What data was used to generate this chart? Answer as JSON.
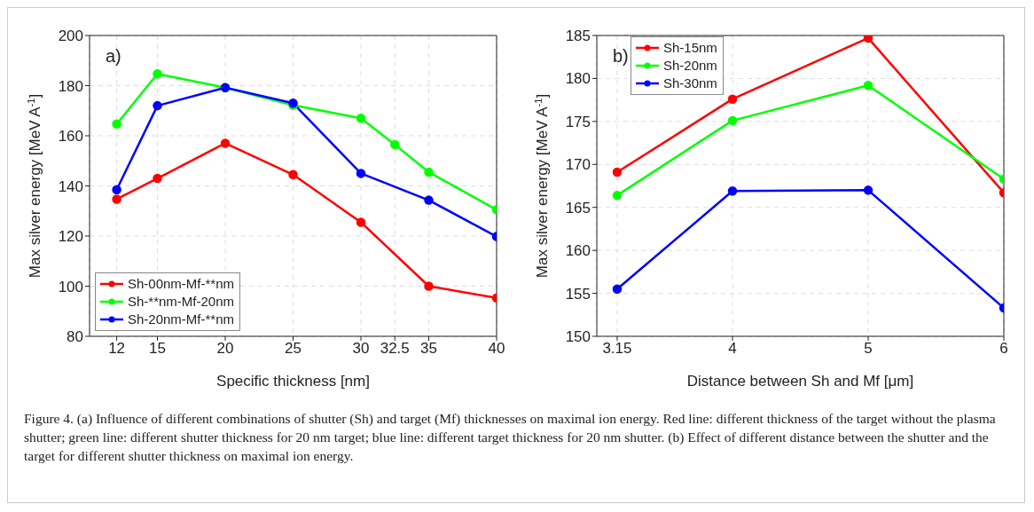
{
  "chart_data": [
    {
      "type": "line",
      "xlabel": "Specific thickness [nm]",
      "ylabel": "Max silver energy [MeV A$^{-1}$]",
      "xlim": [
        10,
        40
      ],
      "xticks": [
        12,
        15,
        20,
        25,
        30,
        32.5,
        35,
        40
      ],
      "ylim": [
        80,
        200
      ],
      "yticks": [
        80,
        100,
        120,
        140,
        160,
        180,
        200
      ],
      "grid": true,
      "legend": "bottom left",
      "marker": "circle",
      "line_style": "solid",
      "annotations": [
        "a)"
      ],
      "series": [
        {
          "name": "Sh-00nm-Mf-**nm",
          "color": "#ff0000",
          "x": [
            12,
            15,
            20,
            25,
            30,
            35,
            40
          ],
          "values": [
            134.7,
            143,
            157,
            144.5,
            125.5,
            100,
            95.3
          ]
        },
        {
          "name": "Sh-**nm-Mf-20nm",
          "color": "#00ff00",
          "x": [
            12,
            15,
            20,
            25,
            30,
            32.5,
            35,
            40
          ],
          "values": [
            164.7,
            184.7,
            179.2,
            172.2,
            167,
            156.5,
            145.5,
            130.5
          ]
        },
        {
          "name": "Sh-20nm-Mf-**nm",
          "color": "#0000ff",
          "x": [
            12,
            15,
            20,
            25,
            30,
            35,
            40
          ],
          "values": [
            138.5,
            172,
            179.2,
            173,
            145,
            134.3,
            119.8
          ]
        }
      ]
    },
    {
      "type": "line",
      "xlabel": "Distance between Sh and Mf [μm]",
      "ylabel": "Max silver energy [MeV A$^{-1}$]",
      "xlim": [
        3,
        6
      ],
      "xticks": [
        3.15,
        4,
        5,
        6
      ],
      "ylim": [
        150,
        185
      ],
      "yticks": [
        150,
        155,
        160,
        165,
        170,
        175,
        180,
        185
      ],
      "grid": true,
      "legend": "top left",
      "marker": "circle",
      "line_style": "solid",
      "annotations": [
        "b)",
        "Figure 4. (a) Influence of different combinations of shutter (Sh) and target (Mf) thicknesses on maximal ion energy. Red line: different thickness of the target without the plasma shutter; green line: different shutter thickness for 20 nm target; blue line: different target thickness for 20 nm shutter. (b) Effect of different distance between the shutter and the target for different shutter thickness on maximal ion energy."
      ],
      "series": [
        {
          "name": "Sh-15nm",
          "color": "#ff0000",
          "x": [
            3.15,
            4,
            5,
            6
          ],
          "values": [
            169.1,
            177.6,
            184.7,
            166.7
          ]
        },
        {
          "name": "Sh-20nm",
          "color": "#00ff00",
          "x": [
            3.15,
            4,
            5,
            6
          ],
          "values": [
            166.4,
            175.1,
            179.2,
            168.3
          ]
        },
        {
          "name": "Sh-30nm",
          "color": "#0000ff",
          "x": [
            3.15,
            4,
            5,
            6
          ],
          "values": [
            155.5,
            166.9,
            167.0,
            153.3
          ]
        }
      ]
    }
  ]
}
